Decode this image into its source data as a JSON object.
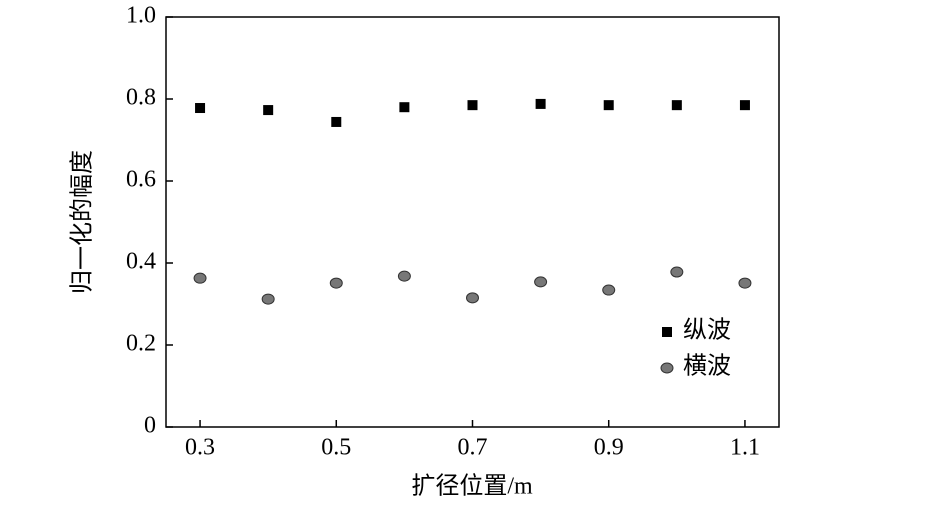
{
  "chart_data": {
    "type": "scatter",
    "xlabel": "扩径位置/m",
    "ylabel": "归一化的幅度",
    "xlim": [
      0.25,
      1.15
    ],
    "ylim": [
      0,
      1
    ],
    "xticks": [
      0.3,
      0.5,
      0.7,
      0.9,
      1.1
    ],
    "yticks": [
      0,
      0.2,
      0.4,
      0.6,
      0.8,
      {
        "value": 1,
        "label": "1.0"
      }
    ],
    "legend": "lower right",
    "series": [
      {
        "name": "纵波",
        "color": "#000000",
        "marker": "square",
        "x": [
          0.3,
          0.4,
          0.5,
          0.6,
          0.7,
          0.8,
          0.9,
          1.0,
          1.1
        ],
        "values": [
          0.778,
          0.773,
          0.744,
          0.78,
          0.785,
          0.788,
          0.785,
          0.785,
          0.785
        ]
      },
      {
        "name": "横波",
        "color": "#777777",
        "marker": "circle",
        "x": [
          0.3,
          0.4,
          0.5,
          0.6,
          0.7,
          0.8,
          0.9,
          1.0,
          1.1
        ],
        "values": [
          0.363,
          0.312,
          0.351,
          0.368,
          0.315,
          0.354,
          0.334,
          0.378,
          0.351
        ]
      }
    ]
  }
}
